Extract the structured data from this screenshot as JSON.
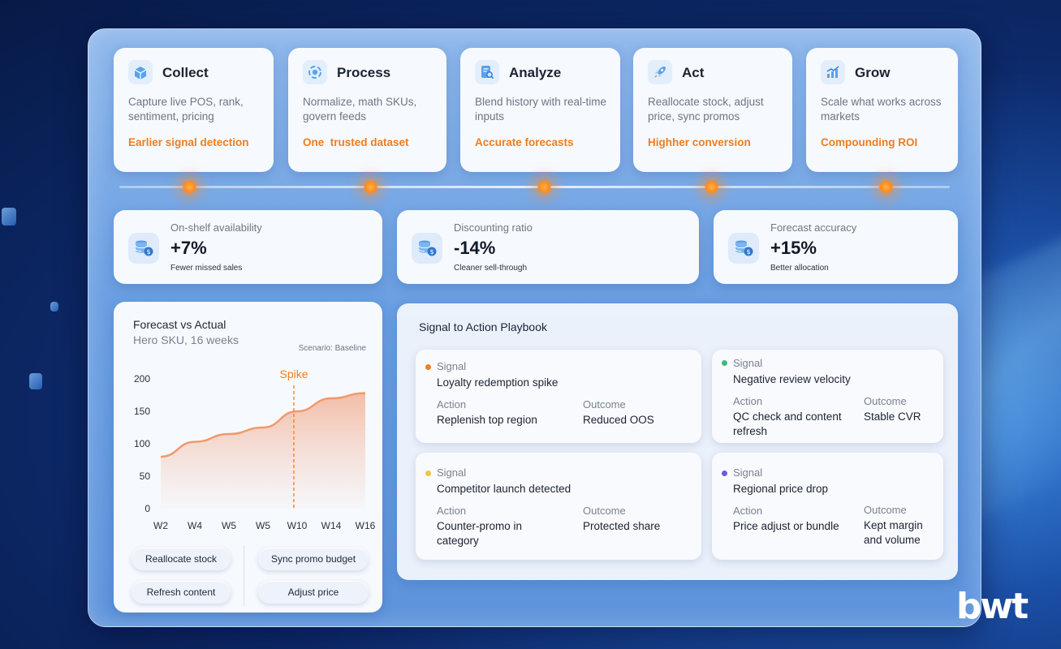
{
  "stages": [
    {
      "icon": "box-icon",
      "title": "Collect",
      "desc": "Capture live POS, rank, sentiment, pricing",
      "result": "Earlier signal detection"
    },
    {
      "icon": "gear-cycle-icon",
      "title": "Process",
      "desc": "Normalize, math SKUs, govern feeds",
      "result": "One  trusted dataset"
    },
    {
      "icon": "report-magnifier-icon",
      "title": "Analyze",
      "desc": "Blend history with real-time inputs",
      "result": "Accurate forecasts"
    },
    {
      "icon": "rocket-icon",
      "title": "Act",
      "desc": "Reallocate stock, adjust price, sync promos",
      "result": "Highher conversion"
    },
    {
      "icon": "bar-growth-icon",
      "title": "Grow",
      "desc": "Scale what works across markets",
      "result": "Compounding ROI"
    }
  ],
  "metrics": [
    {
      "icon": "coins-dollar-icon",
      "label": "On-shelf availability",
      "value": "+7%",
      "sub": "Fewer missed sales"
    },
    {
      "icon": "coins-dollar-icon",
      "label": "Discounting ratio",
      "value": "-14%",
      "sub": "Cleaner sell-through"
    },
    {
      "icon": "coins-dollar-icon",
      "label": "Forecast accuracy",
      "value": "+15%",
      "sub": "Better allocation"
    }
  ],
  "chart": {
    "title": "Forecast vs Actual",
    "subtitle": "Hero SKU, 16 weeks",
    "scenario": "Scenario: Baseline",
    "marker_label": "Spike"
  },
  "chart_data": {
    "type": "area",
    "title": "Forecast vs Actual",
    "subtitle": "Hero SKU, 16 weeks",
    "categories": [
      "W2",
      "W4",
      "W5",
      "W5",
      "W10",
      "W14",
      "W16"
    ],
    "x": [
      0,
      1,
      2,
      3,
      4,
      5,
      6
    ],
    "series": [
      {
        "name": "Hero SKU",
        "values": [
          80,
          103,
          115,
          125,
          150,
          170,
          178
        ]
      }
    ],
    "ylim": [
      0,
      200
    ],
    "yticks": [
      0,
      50,
      100,
      150,
      200
    ],
    "annotations": [
      {
        "label": "Spike",
        "at_category_index": 4
      }
    ],
    "grid": false,
    "color": "#ef9a6c"
  },
  "chips": [
    "Reallocate stock",
    "Sync promo budget",
    "Refresh content",
    "Adjust price"
  ],
  "playbook": {
    "title": "Signal to Action Playbook",
    "labels": {
      "signal": "Signal",
      "action": "Action",
      "outcome": "Outcome"
    },
    "items": [
      {
        "dot_color": "#f07d1e",
        "signal": "Loyalty redemption spike",
        "action": "Replenish top region",
        "outcome": "Reduced OOS"
      },
      {
        "dot_color": "#3fb97a",
        "signal": "Negative review velocity",
        "action": "QC check and content refresh",
        "outcome": "Stable CVR"
      },
      {
        "dot_color": "#f5c542",
        "signal": "Competitor launch detected",
        "action": "Counter-promo in category",
        "outcome": "Protected share"
      },
      {
        "dot_color": "#6a5ae0",
        "signal": "Regional price drop",
        "action": "Price adjust or bundle",
        "outcome": "Kept margin and volume"
      }
    ]
  },
  "logo": "bwt"
}
